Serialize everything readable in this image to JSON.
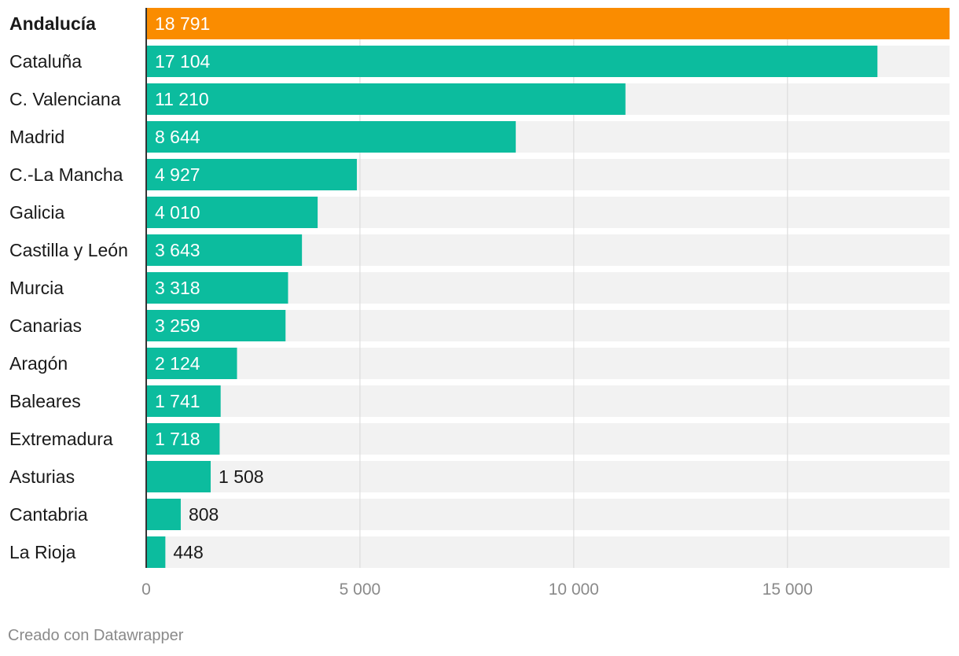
{
  "chart_data": {
    "type": "bar",
    "orientation": "horizontal",
    "categories": [
      "Andalucía",
      "Cataluña",
      "C. Valenciana",
      "Madrid",
      "C.-La Mancha",
      "Galicia",
      "Castilla y León",
      "Murcia",
      "Canarias",
      "Aragón",
      "Baleares",
      "Extremadura",
      "Asturias",
      "Cantabria",
      "La Rioja"
    ],
    "values": [
      18791,
      17104,
      11210,
      8644,
      4927,
      4010,
      3643,
      3318,
      3259,
      2124,
      1741,
      1718,
      1508,
      808,
      448
    ],
    "value_labels": [
      "18 791",
      "17 104",
      "11 210",
      "8 644",
      "4 927",
      "4 010",
      "3 643",
      "3 318",
      "3 259",
      "2 124",
      "1 741",
      "1 718",
      "1 508",
      "808",
      "448"
    ],
    "highlight_index": 0,
    "xlim": [
      0,
      18791
    ],
    "xticks": [
      0,
      5000,
      10000,
      15000
    ],
    "xtick_labels": [
      "0",
      "5 000",
      "10 000",
      "15 000"
    ],
    "grid": true,
    "colors": {
      "bar": "#0cbc9e",
      "highlight": "#fa8c00",
      "background_track": "#f2f2f2",
      "gridline": "#d8d8d8",
      "axis": "#333333"
    }
  },
  "footer": {
    "credit": "Creado con Datawrapper"
  }
}
